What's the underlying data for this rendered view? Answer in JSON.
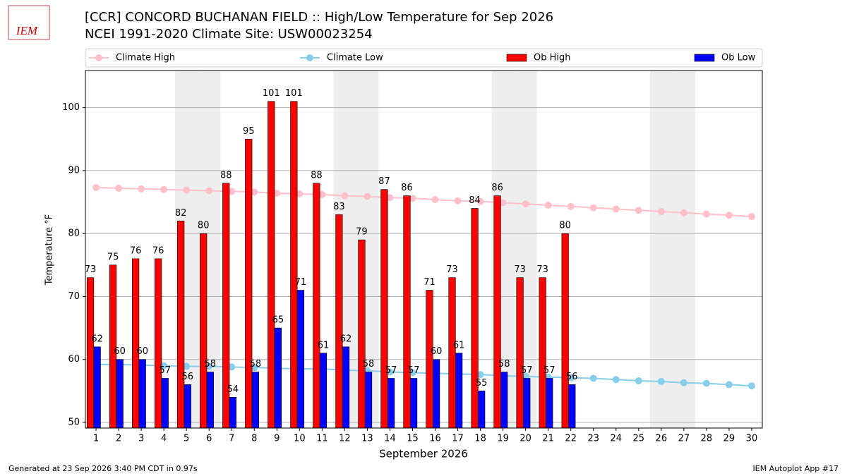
{
  "logo": "IEM",
  "footer_left": "Generated at 23 Sep 2026 3:40 PM CDT in 0.97s",
  "footer_right": "IEM Autoplot App #17",
  "chart_data": {
    "type": "bar",
    "title": "[CCR] CONCORD BUCHANAN FIELD :: High/Low Temperature for Sep 2026",
    "subtitle": "NCEI 1991-2020 Climate Site: USW00023254",
    "xlabel": "September 2026",
    "ylabel": "Temperature °F",
    "x": [
      1,
      2,
      3,
      4,
      5,
      6,
      7,
      8,
      9,
      10,
      11,
      12,
      13,
      14,
      15,
      16,
      17,
      18,
      19,
      20,
      21,
      22,
      23,
      24,
      25,
      26,
      27,
      28,
      29,
      30
    ],
    "xlim": [
      0.53,
      30.47
    ],
    "xticks": [
      1,
      2,
      3,
      4,
      5,
      6,
      7,
      8,
      9,
      10,
      11,
      12,
      13,
      14,
      15,
      16,
      17,
      18,
      19,
      20,
      21,
      22,
      23,
      24,
      25,
      26,
      27,
      28,
      29,
      30
    ],
    "ylim": [
      49.1,
      105.9
    ],
    "yticks": [
      50,
      60,
      70,
      80,
      90,
      100
    ],
    "grid": true,
    "weekend_days": [
      5,
      6,
      12,
      13,
      19,
      20,
      26,
      27
    ],
    "series": [
      {
        "name": "Climate High",
        "kind": "line",
        "color": "#ffc0cb",
        "values": [
          87.3,
          87.2,
          87.1,
          87.0,
          86.9,
          86.8,
          86.7,
          86.6,
          86.4,
          86.3,
          86.2,
          86.0,
          85.9,
          85.7,
          85.6,
          85.4,
          85.2,
          85.1,
          84.9,
          84.7,
          84.5,
          84.3,
          84.1,
          83.9,
          83.7,
          83.5,
          83.3,
          83.1,
          82.9,
          82.7
        ]
      },
      {
        "name": "Climate Low",
        "kind": "line",
        "color": "#87ceeb",
        "values": [
          59.2,
          59.2,
          59.1,
          59.0,
          58.9,
          58.9,
          58.8,
          58.7,
          58.6,
          58.5,
          58.5,
          58.3,
          58.2,
          58.0,
          57.9,
          57.8,
          57.7,
          57.6,
          57.4,
          57.3,
          57.2,
          57.1,
          57.0,
          56.8,
          56.6,
          56.5,
          56.3,
          56.2,
          56.0,
          55.8
        ]
      },
      {
        "name": "Ob High",
        "kind": "bar",
        "color": "#ff0000",
        "values": [
          73,
          75,
          76,
          76,
          82,
          80,
          88,
          95,
          101,
          101,
          88,
          83,
          79,
          87,
          86,
          71,
          73,
          84,
          86,
          73,
          73,
          80,
          null,
          null,
          null,
          null,
          null,
          null,
          null,
          null
        ]
      },
      {
        "name": "Ob Low",
        "kind": "bar",
        "color": "#0000ff",
        "values": [
          62,
          60,
          60,
          57,
          56,
          58,
          54,
          58,
          65,
          71,
          61,
          62,
          58,
          57,
          57,
          60,
          61,
          55,
          58,
          57,
          57,
          56,
          null,
          null,
          null,
          null,
          null,
          null,
          null,
          null
        ]
      }
    ]
  }
}
